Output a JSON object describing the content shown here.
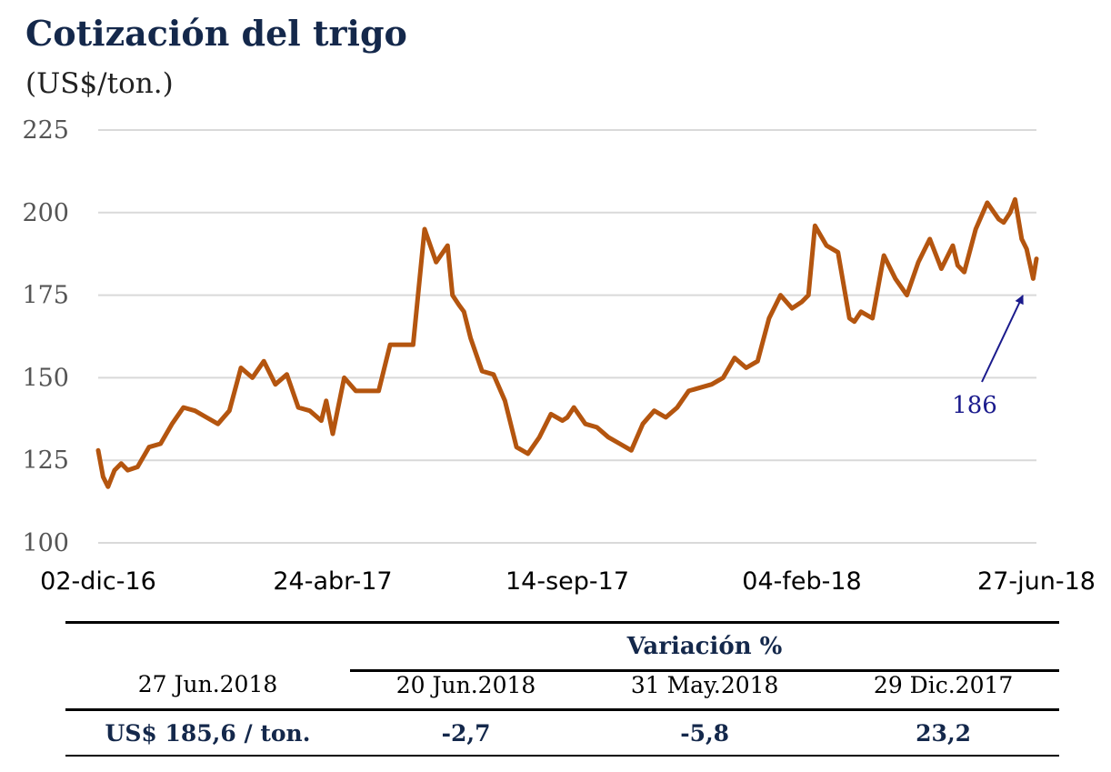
{
  "title": "Cotización del trigo",
  "subtitle": "(US$/ton.)",
  "annotation": "186",
  "colors": {
    "line": "#b4550f",
    "title": "#14284b",
    "arrow": "#1a1a8c",
    "grid": "#d9d9d9"
  },
  "chart_data": {
    "type": "line",
    "title": "Cotización del trigo",
    "ylabel": "(US$/ton.)",
    "ylim": [
      100,
      225
    ],
    "yticks": [
      "225",
      "200",
      "175",
      "150",
      "125",
      "100"
    ],
    "xticks": [
      "02-dic-16",
      "24-abr-17",
      "14-sep-17",
      "04-feb-18",
      "27-jun-18"
    ],
    "grid": true,
    "series": [
      {
        "x": [
          "2016-12-02",
          "2016-12-05",
          "2016-12-08",
          "2016-12-12",
          "2016-12-16",
          "2016-12-20",
          "2016-12-26",
          "2017-01-02",
          "2017-01-09",
          "2017-01-16",
          "2017-01-23",
          "2017-01-30",
          "2017-02-06",
          "2017-02-13",
          "2017-02-20",
          "2017-02-27",
          "2017-03-06",
          "2017-03-13",
          "2017-03-20",
          "2017-03-27",
          "2017-04-03",
          "2017-04-10",
          "2017-04-17",
          "2017-04-20",
          "2017-04-24",
          "2017-05-01",
          "2017-05-08",
          "2017-05-15",
          "2017-05-22",
          "2017-05-29",
          "2017-06-05",
          "2017-06-12",
          "2017-06-19",
          "2017-06-26",
          "2017-07-03",
          "2017-07-06",
          "2017-07-10",
          "2017-07-13",
          "2017-07-17",
          "2017-07-24",
          "2017-07-31",
          "2017-08-07",
          "2017-08-14",
          "2017-08-21",
          "2017-08-28",
          "2017-09-04",
          "2017-09-11",
          "2017-09-14",
          "2017-09-18",
          "2017-09-25",
          "2017-10-02",
          "2017-10-09",
          "2017-10-16",
          "2017-10-23",
          "2017-10-30",
          "2017-11-06",
          "2017-11-13",
          "2017-11-20",
          "2017-11-27",
          "2017-12-04",
          "2017-12-11",
          "2017-12-18",
          "2017-12-25",
          "2018-01-01",
          "2018-01-08",
          "2018-01-15",
          "2018-01-22",
          "2018-01-29",
          "2018-02-04",
          "2018-02-08",
          "2018-02-12",
          "2018-02-19",
          "2018-02-26",
          "2018-03-05",
          "2018-03-08",
          "2018-03-12",
          "2018-03-19",
          "2018-03-26",
          "2018-04-02",
          "2018-04-09",
          "2018-04-16",
          "2018-04-23",
          "2018-04-30",
          "2018-05-07",
          "2018-05-10",
          "2018-05-14",
          "2018-05-21",
          "2018-05-28",
          "2018-06-04",
          "2018-06-07",
          "2018-06-11",
          "2018-06-14",
          "2018-06-18",
          "2018-06-21",
          "2018-06-25",
          "2018-06-27"
        ],
        "values": [
          128,
          120,
          117,
          122,
          124,
          122,
          123,
          129,
          130,
          136,
          141,
          140,
          138,
          136,
          140,
          153,
          150,
          155,
          148,
          151,
          141,
          140,
          137,
          143,
          133,
          150,
          146,
          146,
          146,
          160,
          160,
          160,
          195,
          185,
          190,
          175,
          172,
          170,
          162,
          152,
          151,
          143,
          129,
          127,
          132,
          139,
          137,
          138,
          141,
          136,
          135,
          132,
          130,
          128,
          136,
          140,
          138,
          141,
          146,
          147,
          148,
          150,
          156,
          153,
          155,
          168,
          175,
          171,
          173,
          175,
          196,
          190,
          188,
          168,
          167,
          170,
          168,
          187,
          180,
          175,
          185,
          192,
          183,
          190,
          184,
          182,
          195,
          203,
          198,
          197,
          200,
          204,
          192,
          189,
          180,
          186
        ]
      }
    ]
  },
  "table": {
    "header": "Variación %",
    "columns": [
      "27 Jun.2018",
      "20 Jun.2018",
      "31 May.2018",
      "29 Dic.2017"
    ],
    "values": [
      "US$ 185,6 / ton.",
      "-2,7",
      "-5,8",
      "23,2"
    ]
  }
}
